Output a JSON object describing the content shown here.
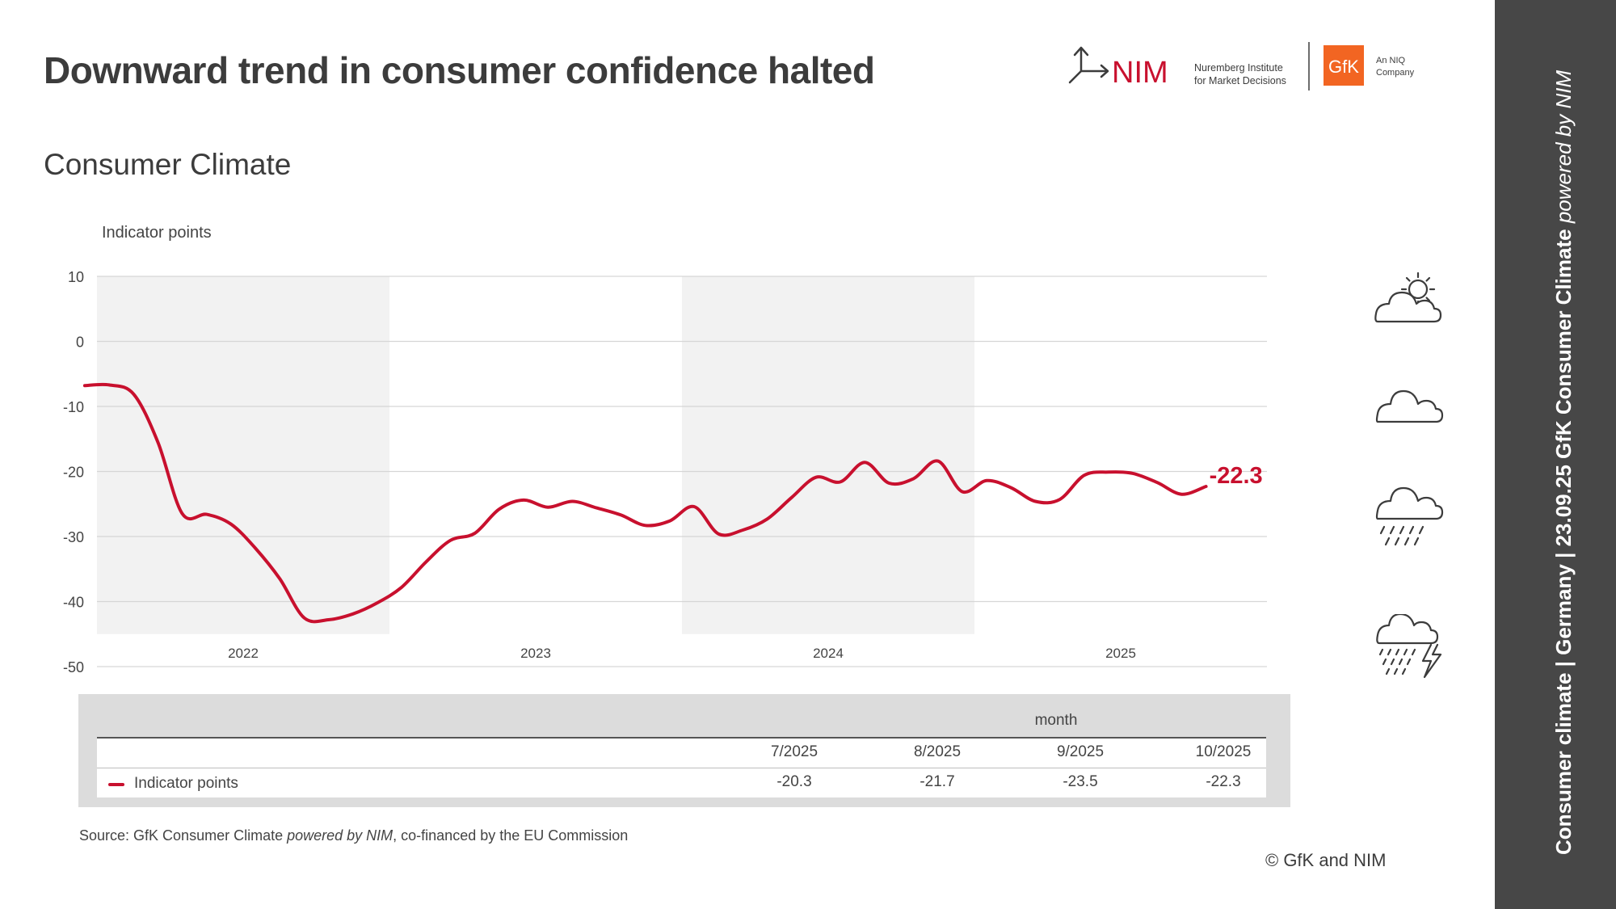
{
  "header": {
    "title": "Downward trend in consumer confidence halted",
    "subtitle": "Consumer Climate"
  },
  "logos": {
    "nim_text": "NIM",
    "nim_line1": "Nuremberg Institute",
    "nim_line2": "for Market Decisions",
    "gfk_text": "GfK",
    "niq_line1": "An NIQ",
    "niq_line2": "Company"
  },
  "colors": {
    "series": "#c8102e",
    "band": "#f2f2f2",
    "sidebar": "#474747"
  },
  "chart_data": {
    "type": "line",
    "ylabel": "Indicator points",
    "ylim": [
      -50,
      10
    ],
    "yticks": [
      10,
      0,
      -10,
      -20,
      -30,
      -40,
      -50
    ],
    "grid": true,
    "year_labels": [
      "2022",
      "2023",
      "2024",
      "2025"
    ],
    "shaded_years": [
      "2022",
      "2024"
    ],
    "series": [
      {
        "name": "Indicator points",
        "x": [
          "2021-12",
          "2022-01",
          "2022-02",
          "2022-03",
          "2022-04",
          "2022-05",
          "2022-06",
          "2022-07",
          "2022-08",
          "2022-09",
          "2022-10",
          "2022-11",
          "2022-12",
          "2023-01",
          "2023-02",
          "2023-03",
          "2023-04",
          "2023-05",
          "2023-06",
          "2023-07",
          "2023-08",
          "2023-09",
          "2023-10",
          "2023-11",
          "2023-12",
          "2024-01",
          "2024-02",
          "2024-03",
          "2024-04",
          "2024-05",
          "2024-06",
          "2024-07",
          "2024-08",
          "2024-09",
          "2024-10",
          "2024-11",
          "2024-12",
          "2025-01",
          "2025-02",
          "2025-03",
          "2025-04",
          "2025-05",
          "2025-06",
          "2025-07",
          "2025-08",
          "2025-09",
          "2025-10"
        ],
        "y": [
          -6.8,
          -6.7,
          -8.1,
          -15.5,
          -26.5,
          -26.6,
          -28.1,
          -31.8,
          -36.5,
          -42.5,
          -42.8,
          -41.9,
          -40.2,
          -37.8,
          -33.9,
          -30.6,
          -29.5,
          -25.8,
          -24.4,
          -25.5,
          -24.6,
          -25.6,
          -26.7,
          -28.3,
          -27.6,
          -25.4,
          -29.6,
          -29.0,
          -27.3,
          -24.0,
          -20.9,
          -21.6,
          -18.6,
          -21.8,
          -21.1,
          -18.4,
          -23.1,
          -21.4,
          -22.5,
          -24.6,
          -24.3,
          -20.6,
          -20.1,
          -20.3,
          -21.7,
          -23.5,
          -22.3
        ]
      }
    ],
    "last_value_label": "-22.3"
  },
  "table": {
    "group_header": "month",
    "columns": [
      "7/2025",
      "8/2025",
      "9/2025",
      "10/2025"
    ],
    "row_label": "Indicator points",
    "values": [
      "-20.3",
      "-21.7",
      "-23.5",
      "-22.3"
    ]
  },
  "footer": {
    "source_prefix": "Source: GfK Consumer Climate ",
    "source_italic": "powered by NIM",
    "source_suffix": ", co-financed by the EU Commission",
    "copyright": "© GfK and NIM"
  },
  "sidebar": {
    "text_bold": "Consumer climate  |  Germany  |  23.09.25   GfK Consumer Climate ",
    "text_italic": "powered by NIM"
  },
  "weather_icons": [
    "sun-cloud-icon",
    "cloud-icon",
    "rain-cloud-icon",
    "thunderstorm-icon"
  ]
}
